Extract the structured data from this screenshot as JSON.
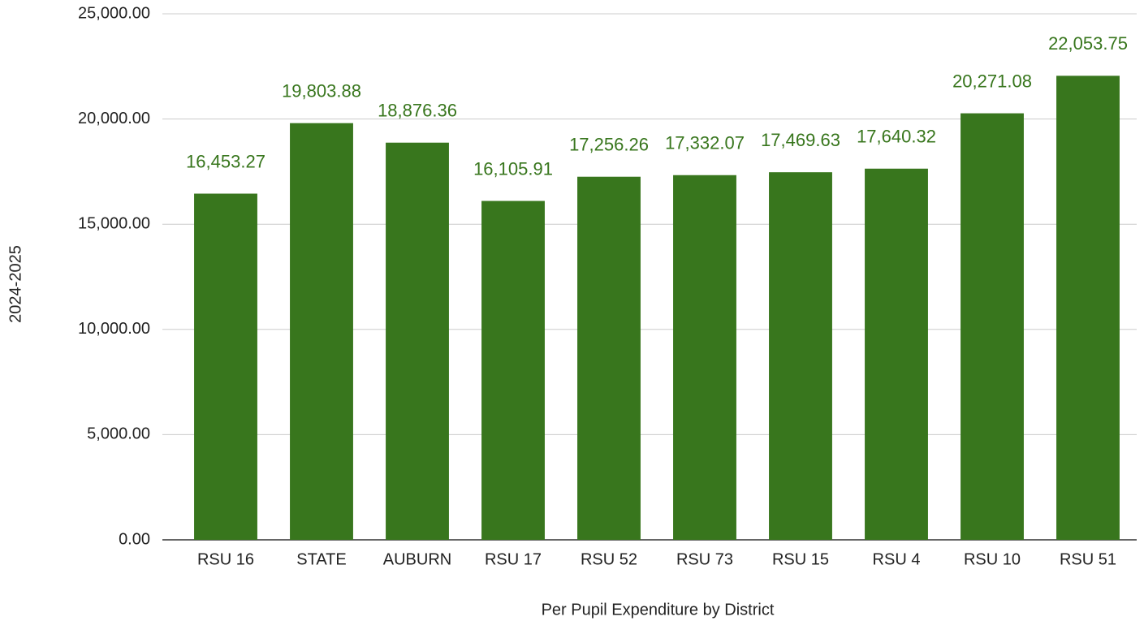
{
  "chart_data": {
    "type": "bar",
    "x_label": "Per Pupil Expenditure by District",
    "y_label": "2024-2025",
    "categories": [
      "RSU 16",
      "STATE",
      "AUBURN",
      "RSU 17",
      "RSU 52",
      "RSU 73",
      "RSU 15",
      "RSU 4",
      "RSU 10",
      "RSU 51"
    ],
    "values": [
      16453.27,
      19803.88,
      18876.36,
      16105.91,
      17256.26,
      17332.07,
      17469.63,
      17640.32,
      20271.08,
      22053.75
    ],
    "value_labels": [
      "16,453.27",
      "19,803.88",
      "18,876.36",
      "16,105.91",
      "17,256.26",
      "17,332.07",
      "17,469.63",
      "17,640.32",
      "20,271.08",
      "22,053.75"
    ],
    "color": "#38761d",
    "ylim": [
      0,
      25000
    ],
    "yticks": [
      {
        "value": 0,
        "label": "0.00"
      },
      {
        "value": 5000,
        "label": "5,000.00"
      },
      {
        "value": 10000,
        "label": "10,000.00"
      },
      {
        "value": 15000,
        "label": "15,000.00"
      },
      {
        "value": 20000,
        "label": "20,000.00"
      },
      {
        "value": 25000,
        "label": "25,000.00"
      }
    ],
    "grid": true
  }
}
